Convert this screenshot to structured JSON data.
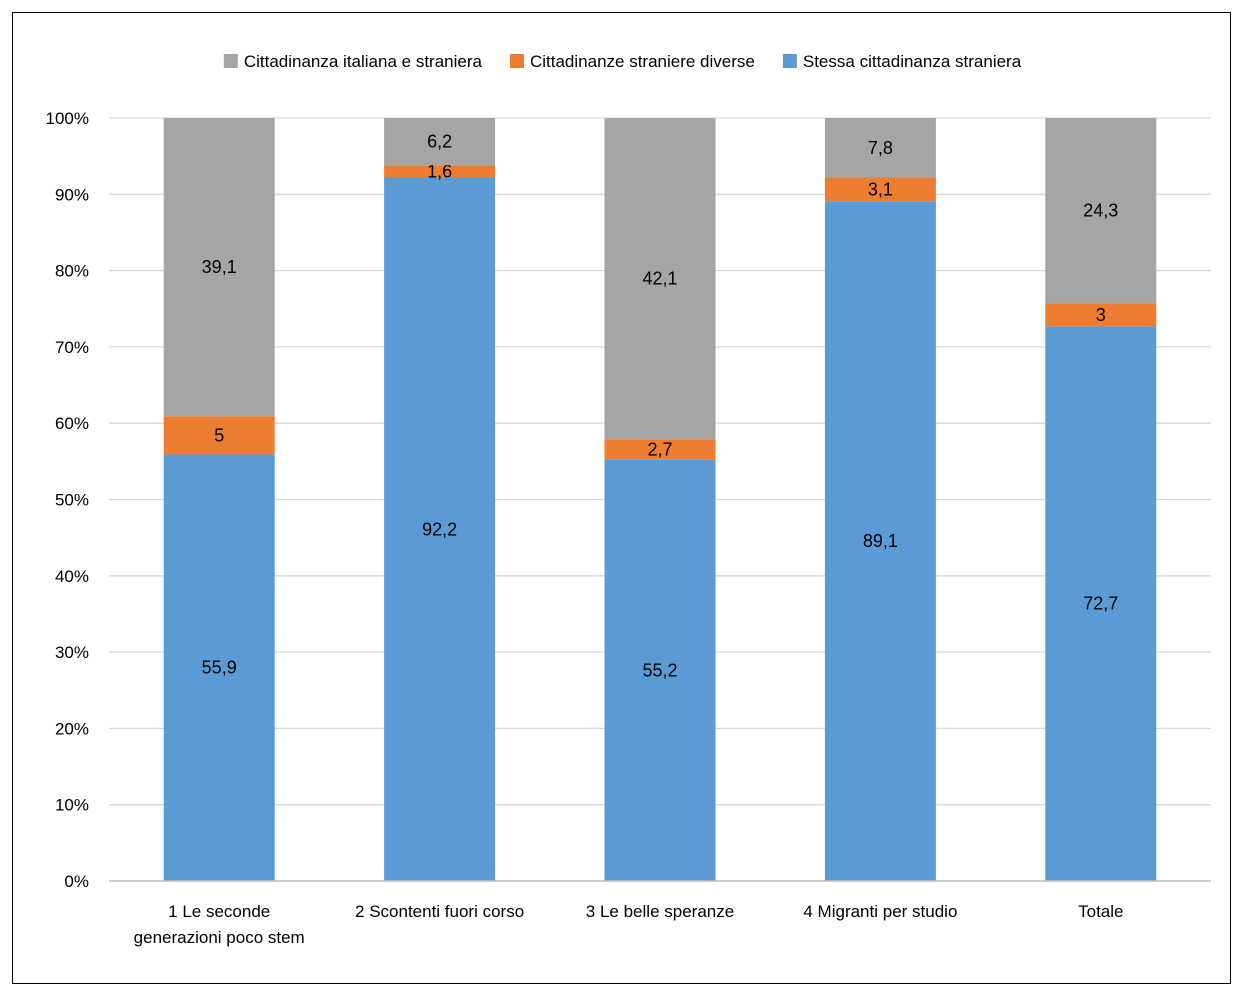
{
  "chart_data": {
    "type": "bar",
    "stacked": true,
    "percent_scale": true,
    "categories": [
      [
        "1 Le seconde",
        "generazioni poco stem"
      ],
      [
        "2 Scontenti fuori corso"
      ],
      [
        "3 Le belle speranze"
      ],
      [
        "4 Migranti per studio"
      ],
      [
        "Totale"
      ]
    ],
    "series": [
      {
        "name": "Stessa cittadinanza straniera",
        "color": "#5B9BD5",
        "values": [
          55.9,
          92.2,
          55.2,
          89.1,
          72.7
        ],
        "labels": [
          "55,9",
          "92,2",
          "55,2",
          "89,1",
          "72,7"
        ]
      },
      {
        "name": "Cittadinanze straniere diverse",
        "color": "#ED7D31",
        "values": [
          5,
          1.6,
          2.7,
          3.1,
          3
        ],
        "labels": [
          "5",
          "1,6",
          "2,7",
          "3,1",
          "3"
        ]
      },
      {
        "name": "Cittadinanza italiana e straniera",
        "color": "#A5A5A5",
        "values": [
          39.1,
          6.2,
          42.1,
          7.8,
          24.3
        ],
        "labels": [
          "39,1",
          "6,2",
          "42,1",
          "7,8",
          "24,3"
        ]
      }
    ],
    "legend_order": [
      2,
      1,
      0
    ],
    "legend_position": "top",
    "y_ticks": [
      "0%",
      "10%",
      "20%",
      "30%",
      "40%",
      "50%",
      "60%",
      "70%",
      "80%",
      "90%",
      "100%"
    ],
    "ylim": [
      0,
      100
    ],
    "grid": true,
    "title": "",
    "xlabel": "",
    "ylabel": ""
  }
}
